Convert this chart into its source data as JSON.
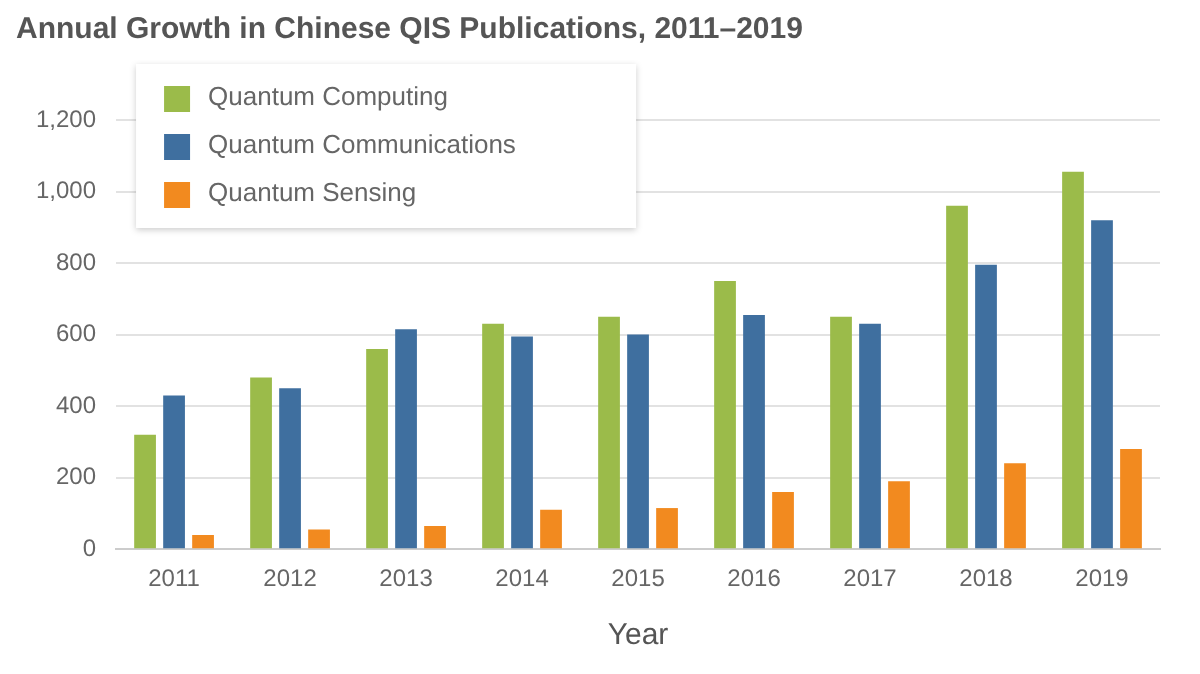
{
  "chart_data": {
    "type": "bar",
    "title": "Annual Growth in Chinese QIS Publications, 2011–2019",
    "xlabel": "Year",
    "categories": [
      "2011",
      "2012",
      "2013",
      "2014",
      "2015",
      "2016",
      "2017",
      "2018",
      "2019"
    ],
    "series": [
      {
        "name": "Quantum Computing",
        "color": "#9bbb4a",
        "values": [
          320,
          480,
          560,
          630,
          650,
          750,
          650,
          960,
          1055
        ]
      },
      {
        "name": "Quantum Communications",
        "color": "#3f6f9f",
        "values": [
          430,
          450,
          615,
          595,
          600,
          655,
          630,
          795,
          920
        ]
      },
      {
        "name": "Quantum Sensing",
        "color": "#f28a1f",
        "values": [
          40,
          55,
          65,
          110,
          115,
          160,
          190,
          240,
          280
        ]
      }
    ],
    "ylim": [
      0,
      1200
    ],
    "yticks": [
      0,
      {
        "value": 200,
        "label": "200"
      },
      {
        "value": 400,
        "label": "400"
      },
      {
        "value": 600,
        "label": "600"
      },
      {
        "value": 800,
        "label": "800"
      },
      {
        "value": 1000,
        "label": "1,000"
      },
      {
        "value": 1200,
        "label": "1,200"
      }
    ],
    "grid": "y",
    "legend": "top left"
  }
}
